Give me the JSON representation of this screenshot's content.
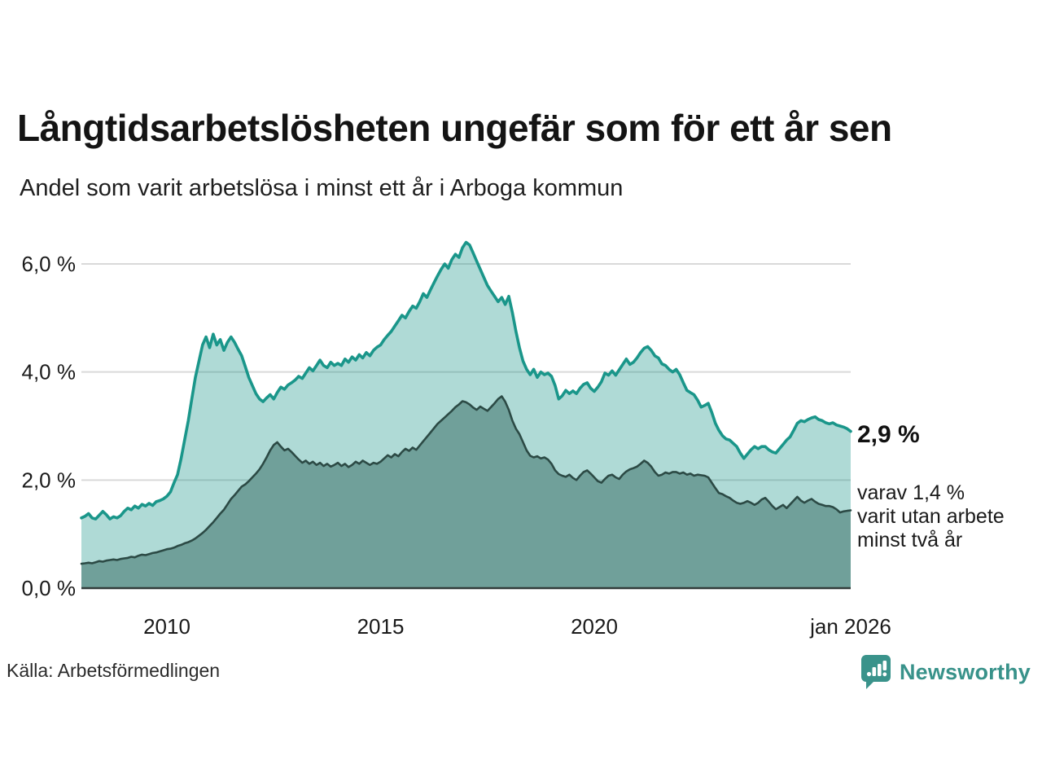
{
  "header": {
    "title": "Långtidsarbetslösheten ungefär som för ett år sen",
    "subtitle": "Andel som varit arbetslösa i minst ett år i Arboga kommun"
  },
  "footer": {
    "source": "Källa: Arbetsförmedlingen",
    "brand": "Newsworthy"
  },
  "colors": {
    "line_total": "#1a968a",
    "fill_total": "rgba(26,150,138,0.35)",
    "fill_two_years": "#70a09a",
    "line_two_years": "#2c4a45",
    "gridline": "#d9d9d9",
    "baseline": "#323c3a",
    "text": "#1a1a1a",
    "brand_teal": "#3a938b"
  },
  "chart_data": {
    "type": "area",
    "title": "Långtidsarbetslösheten ungefär som för ett år sen",
    "subtitle": "Andel som varit arbetslösa i minst ett år i Arboga kommun",
    "unit": "%",
    "x_start": "2008-01",
    "x_end": "2026-01",
    "interval": "monthly",
    "ylim": [
      0,
      6.6
    ],
    "grid": "horizontal",
    "legend_position": "none",
    "y_axis": {
      "ticks": [
        {
          "value": 0,
          "label": "0,0 %"
        },
        {
          "value": 2,
          "label": "2,0 %"
        },
        {
          "value": 4,
          "label": "4,0 %"
        },
        {
          "value": 6,
          "label": "6,0 %"
        }
      ]
    },
    "x_axis": {
      "ticks": [
        {
          "index": 24,
          "label": "2010"
        },
        {
          "index": 84,
          "label": "2015"
        },
        {
          "index": 144,
          "label": "2020"
        },
        {
          "index": 216,
          "label": "jan 2026"
        }
      ]
    },
    "annotations": {
      "latest_total": "2,9 %",
      "latest_two_years": "varav 1,4 %\nvarit utan arbete\nminst två år"
    },
    "series": [
      {
        "name": "Arbetslösa minst ett år",
        "latest_value": 2.9,
        "values": [
          1.3,
          1.33,
          1.38,
          1.3,
          1.28,
          1.35,
          1.42,
          1.36,
          1.28,
          1.32,
          1.3,
          1.34,
          1.42,
          1.48,
          1.45,
          1.52,
          1.48,
          1.55,
          1.52,
          1.57,
          1.53,
          1.6,
          1.62,
          1.65,
          1.7,
          1.78,
          1.95,
          2.1,
          2.4,
          2.75,
          3.1,
          3.5,
          3.9,
          4.2,
          4.5,
          4.65,
          4.45,
          4.7,
          4.5,
          4.6,
          4.4,
          4.55,
          4.65,
          4.55,
          4.42,
          4.3,
          4.1,
          3.9,
          3.75,
          3.6,
          3.5,
          3.45,
          3.52,
          3.58,
          3.5,
          3.62,
          3.72,
          3.68,
          3.76,
          3.8,
          3.85,
          3.92,
          3.88,
          3.98,
          4.08,
          4.02,
          4.12,
          4.22,
          4.12,
          4.08,
          4.18,
          4.12,
          4.16,
          4.12,
          4.24,
          4.18,
          4.28,
          4.22,
          4.32,
          4.26,
          4.36,
          4.3,
          4.4,
          4.46,
          4.5,
          4.6,
          4.68,
          4.75,
          4.85,
          4.95,
          5.05,
          5.0,
          5.12,
          5.22,
          5.18,
          5.3,
          5.45,
          5.38,
          5.52,
          5.65,
          5.78,
          5.9,
          6.0,
          5.92,
          6.08,
          6.18,
          6.12,
          6.3,
          6.4,
          6.35,
          6.2,
          6.05,
          5.9,
          5.75,
          5.6,
          5.5,
          5.4,
          5.3,
          5.38,
          5.25,
          5.4,
          5.1,
          4.75,
          4.45,
          4.2,
          4.05,
          3.95,
          4.05,
          3.9,
          4.0,
          3.95,
          3.98,
          3.92,
          3.75,
          3.5,
          3.56,
          3.66,
          3.6,
          3.65,
          3.6,
          3.7,
          3.77,
          3.8,
          3.7,
          3.64,
          3.72,
          3.82,
          3.98,
          3.94,
          4.02,
          3.94,
          4.04,
          4.14,
          4.24,
          4.14,
          4.18,
          4.26,
          4.36,
          4.44,
          4.47,
          4.4,
          4.3,
          4.26,
          4.15,
          4.12,
          4.05,
          4.0,
          4.05,
          3.95,
          3.8,
          3.66,
          3.62,
          3.58,
          3.48,
          3.35,
          3.38,
          3.42,
          3.25,
          3.05,
          2.92,
          2.82,
          2.76,
          2.74,
          2.68,
          2.62,
          2.5,
          2.4,
          2.48,
          2.56,
          2.62,
          2.58,
          2.62,
          2.62,
          2.56,
          2.52,
          2.5,
          2.58,
          2.66,
          2.74,
          2.8,
          2.92,
          3.05,
          3.1,
          3.08,
          3.12,
          3.15,
          3.17,
          3.12,
          3.1,
          3.06,
          3.04,
          3.06,
          3.02,
          3.0,
          2.98,
          2.95,
          2.9
        ]
      },
      {
        "name": "varav arbetslösa minst två år",
        "latest_value": 1.4,
        "values": [
          0.45,
          0.46,
          0.47,
          0.46,
          0.48,
          0.5,
          0.49,
          0.51,
          0.52,
          0.53,
          0.52,
          0.54,
          0.55,
          0.56,
          0.58,
          0.57,
          0.6,
          0.62,
          0.61,
          0.63,
          0.65,
          0.66,
          0.68,
          0.7,
          0.72,
          0.73,
          0.75,
          0.78,
          0.8,
          0.83,
          0.85,
          0.88,
          0.92,
          0.97,
          1.02,
          1.08,
          1.15,
          1.22,
          1.3,
          1.38,
          1.45,
          1.55,
          1.65,
          1.72,
          1.8,
          1.88,
          1.92,
          1.98,
          2.05,
          2.12,
          2.2,
          2.3,
          2.42,
          2.55,
          2.65,
          2.7,
          2.62,
          2.55,
          2.58,
          2.52,
          2.45,
          2.38,
          2.32,
          2.36,
          2.3,
          2.34,
          2.28,
          2.32,
          2.26,
          2.3,
          2.25,
          2.28,
          2.32,
          2.26,
          2.3,
          2.24,
          2.28,
          2.34,
          2.3,
          2.36,
          2.32,
          2.28,
          2.32,
          2.3,
          2.34,
          2.4,
          2.46,
          2.42,
          2.48,
          2.44,
          2.52,
          2.58,
          2.54,
          2.6,
          2.56,
          2.64,
          2.72,
          2.8,
          2.88,
          2.96,
          3.04,
          3.1,
          3.16,
          3.22,
          3.28,
          3.35,
          3.4,
          3.46,
          3.44,
          3.4,
          3.34,
          3.3,
          3.36,
          3.32,
          3.28,
          3.35,
          3.42,
          3.5,
          3.55,
          3.45,
          3.3,
          3.1,
          2.95,
          2.85,
          2.7,
          2.55,
          2.45,
          2.42,
          2.44,
          2.4,
          2.42,
          2.38,
          2.3,
          2.18,
          2.11,
          2.08,
          2.06,
          2.1,
          2.04,
          2.0,
          2.08,
          2.15,
          2.18,
          2.12,
          2.05,
          1.98,
          1.95,
          2.02,
          2.08,
          2.1,
          2.05,
          2.02,
          2.1,
          2.16,
          2.2,
          2.22,
          2.25,
          2.3,
          2.36,
          2.32,
          2.25,
          2.15,
          2.08,
          2.1,
          2.14,
          2.12,
          2.15,
          2.15,
          2.12,
          2.14,
          2.1,
          2.12,
          2.08,
          2.1,
          2.09,
          2.08,
          2.05,
          1.95,
          1.85,
          1.76,
          1.74,
          1.7,
          1.67,
          1.62,
          1.58,
          1.56,
          1.58,
          1.61,
          1.58,
          1.54,
          1.58,
          1.64,
          1.67,
          1.6,
          1.52,
          1.46,
          1.5,
          1.54,
          1.48,
          1.55,
          1.62,
          1.69,
          1.62,
          1.58,
          1.62,
          1.65,
          1.6,
          1.56,
          1.54,
          1.52,
          1.52,
          1.5,
          1.46,
          1.4,
          1.42,
          1.43,
          1.44
        ]
      }
    ]
  }
}
